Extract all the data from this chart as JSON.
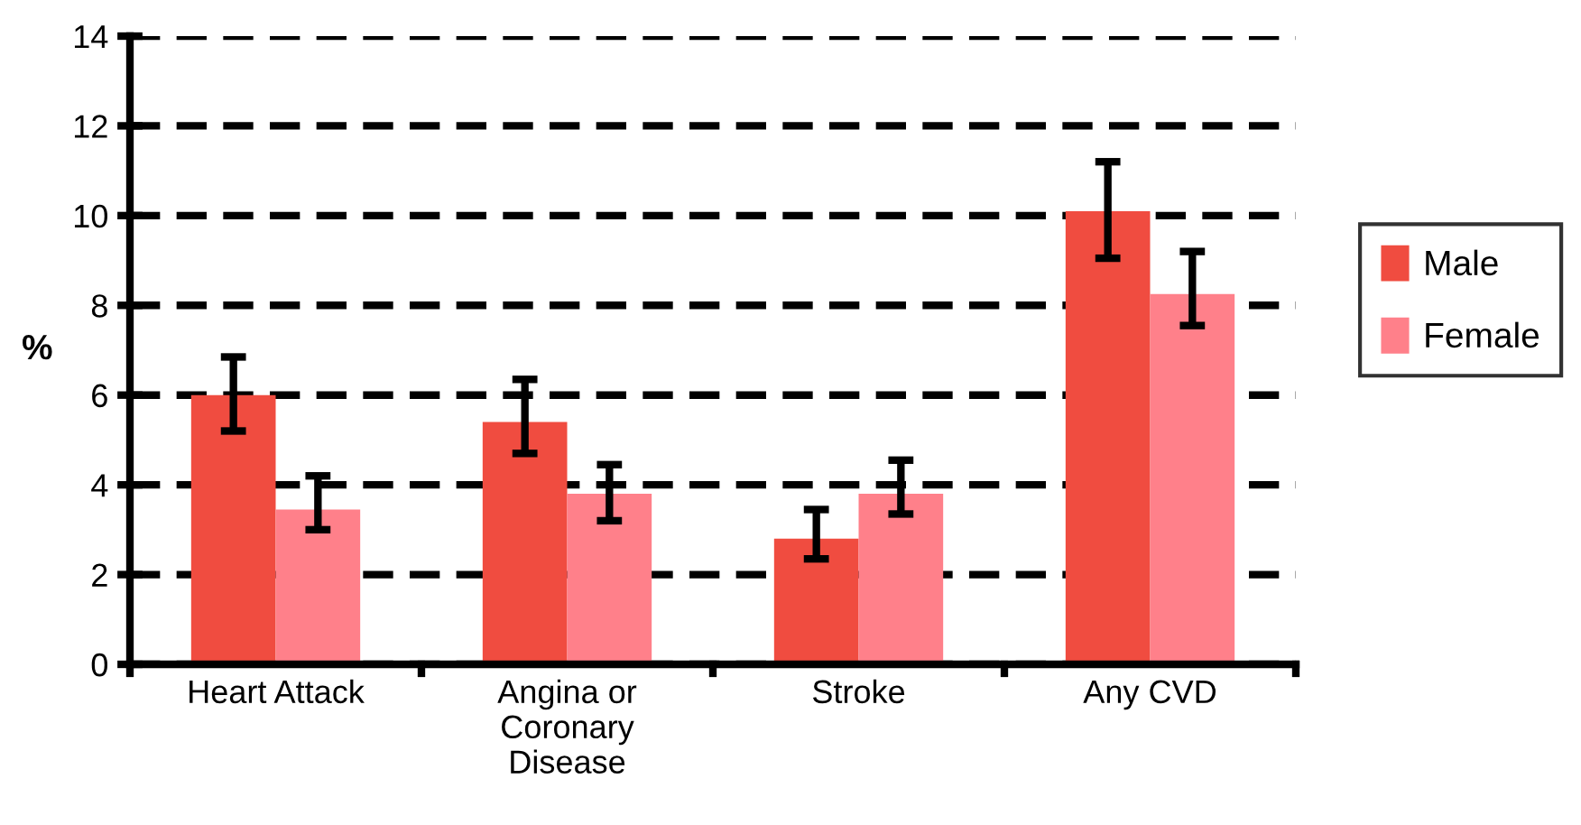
{
  "chart_data": {
    "type": "bar",
    "ylabel": "%",
    "categories": [
      "Heart Attack",
      "Angina or\nCoronary\nDisease",
      "Stroke",
      "Any CVD"
    ],
    "series": [
      {
        "name": "Male",
        "color": "#f04c40",
        "values": [
          6.0,
          5.4,
          2.8,
          10.1
        ],
        "errors": [
          [
            5.2,
            6.85
          ],
          [
            4.7,
            6.35
          ],
          [
            2.35,
            3.45
          ],
          [
            9.05,
            11.2
          ]
        ]
      },
      {
        "name": "Female",
        "color": "#ff808a",
        "values": [
          3.45,
          3.8,
          3.8,
          8.25
        ],
        "errors": [
          [
            3.0,
            4.2
          ],
          [
            3.2,
            4.45
          ],
          [
            3.35,
            4.55
          ],
          [
            7.55,
            9.2
          ]
        ]
      }
    ],
    "ylim": [
      0,
      14
    ],
    "yticks": [
      0,
      2,
      4,
      6,
      8,
      10,
      12,
      14
    ],
    "grid": "y",
    "line_style": "dashed",
    "legend": "right"
  }
}
